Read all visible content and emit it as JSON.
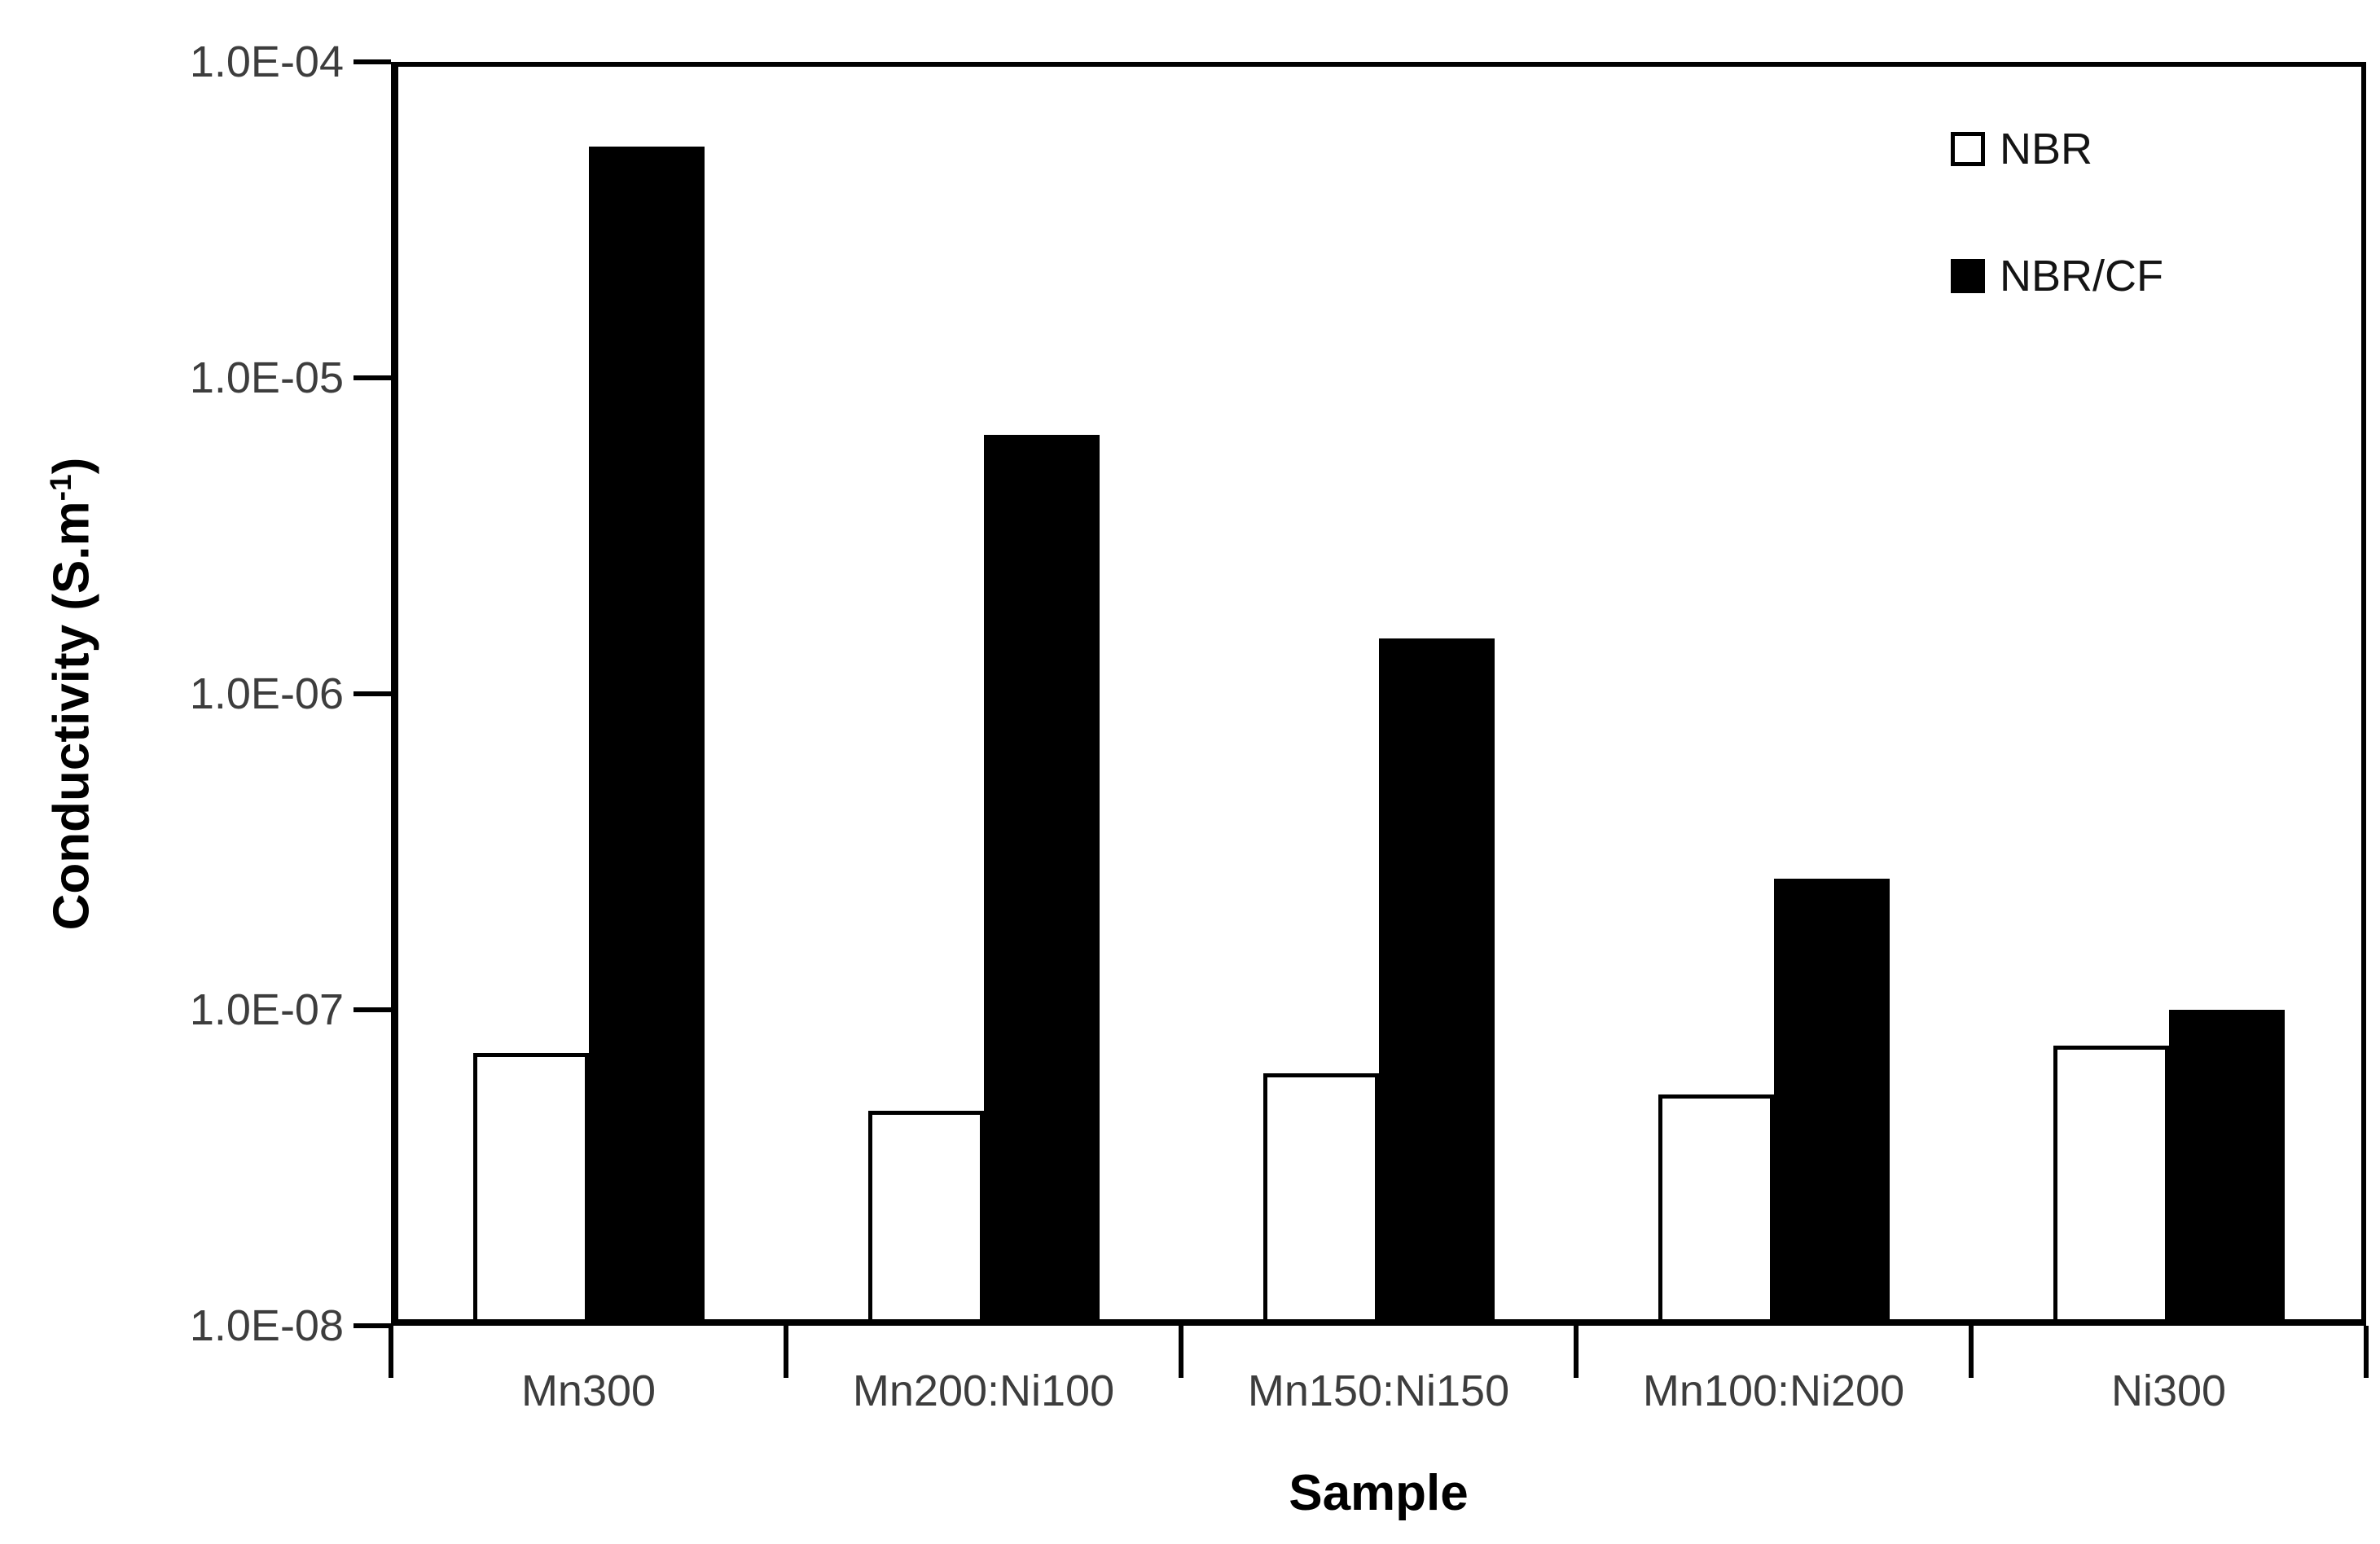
{
  "chart_data": {
    "type": "bar",
    "title": "",
    "xlabel": "Sample",
    "ylabel_prefix": "Conductivity (S.m",
    "ylabel_sup": "-1",
    "ylabel_suffix": ")",
    "y_scale": "log",
    "ylim": [
      1e-08,
      0.0001
    ],
    "grid": false,
    "legend_position": "top-right-inside",
    "categories": [
      "Mn300",
      "Mn200:Ni100",
      "Mn150:Ni150",
      "Mn100:Ni200",
      "Ni300"
    ],
    "series": [
      {
        "name": "NBR",
        "color": "#ffffff",
        "outline": "#000000",
        "values": [
          7.3e-08,
          4.8e-08,
          6.3e-08,
          5.4e-08,
          7.7e-08
        ]
      },
      {
        "name": "NBR/CF",
        "color": "#000000",
        "outline": "#000000",
        "values": [
          5.4e-05,
          6.6e-06,
          1.5e-06,
          2.6e-07,
          1e-07
        ]
      }
    ],
    "y_ticks": [
      {
        "label": "1.0E-04",
        "value": 0.0001
      },
      {
        "label": "1.0E-05",
        "value": 1e-05
      },
      {
        "label": "1.0E-06",
        "value": 1e-06
      },
      {
        "label": "1.0E-07",
        "value": 1e-07
      },
      {
        "label": "1.0E-08",
        "value": 1e-08
      }
    ]
  },
  "colors": {
    "background": "#ffffff",
    "axis": "#000000",
    "tick_label": "#3d3d3d",
    "title_text": "#000000"
  }
}
